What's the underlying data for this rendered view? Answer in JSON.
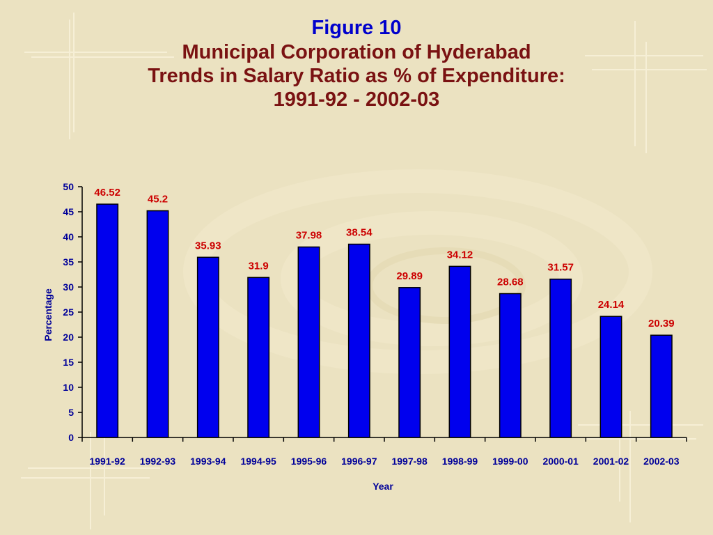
{
  "header": {
    "figure_label": "Figure  10",
    "title_lines": [
      "Municipal Corporation of Hyderabad",
      "Trends in Salary Ratio as % of Expenditure:",
      "1991-92 - 2002-03"
    ]
  },
  "chart_data": {
    "type": "bar",
    "categories": [
      "1991-92",
      "1992-93",
      "1993-94",
      "1994-95",
      "1995-96",
      "1996-97",
      "1997-98",
      "1998-99",
      "1999-00",
      "2000-01",
      "2001-02",
      "2002-03"
    ],
    "values": [
      46.52,
      45.2,
      35.93,
      31.9,
      37.98,
      38.54,
      29.89,
      34.12,
      28.68,
      31.57,
      24.14,
      20.39
    ],
    "data_labels": [
      "46.52",
      "45.2",
      "35.93",
      "31.9",
      "37.98",
      "38.54",
      "29.89",
      "34.12",
      "28.68",
      "31.57",
      "24.14",
      "20.39"
    ],
    "xlabel": "Year",
    "ylabel": "Percentage",
    "ylim": [
      0,
      50
    ],
    "yticks": [
      0,
      5,
      10,
      15,
      20,
      25,
      30,
      35,
      40,
      45,
      50
    ],
    "grid": false,
    "colors": {
      "bar": "#0000ee",
      "bar_outline": "#000000",
      "data_label": "#cc0000",
      "axis_text": "#000099"
    }
  }
}
